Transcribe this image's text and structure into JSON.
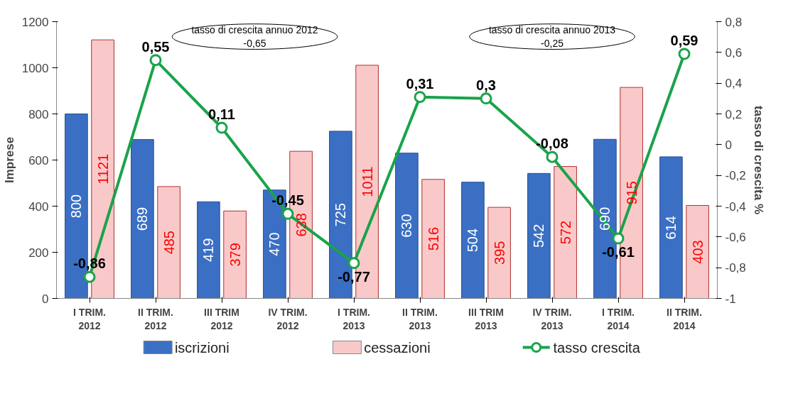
{
  "chart_data": {
    "type": "bar",
    "categories": [
      "I TRIM.\n2012",
      "II TRIM.\n2012",
      "III TRIM\n2012",
      "IV TRIM.\n2012",
      "I TRIM.\n2013",
      "II TRIM.\n2013",
      "III TRIM\n2013",
      "IV TRIM.\n2013",
      "I TRIM.\n2014",
      "II TRIM.\n2014"
    ],
    "series": [
      {
        "name": "iscrizioni",
        "color": "#3a6fc4",
        "values": [
          800,
          689,
          419,
          470,
          725,
          630,
          504,
          542,
          690,
          614
        ],
        "value_labels": [
          "800",
          "689",
          "419",
          "470",
          "725",
          "630",
          "504",
          "542",
          "690",
          "614"
        ]
      },
      {
        "name": "cessazioni",
        "color": "#f9c9c9",
        "values": [
          1121,
          485,
          379,
          638,
          1011,
          516,
          395,
          572,
          915,
          403
        ],
        "value_labels": [
          "1121",
          "485",
          "379",
          "638",
          "1011",
          "516",
          "395",
          "572",
          "915",
          "403"
        ]
      },
      {
        "name": "tasso crescita",
        "type": "line",
        "axis": "y2",
        "color": "#1aa34a",
        "marker": "circle",
        "values": [
          -0.86,
          0.55,
          0.11,
          -0.45,
          -0.77,
          0.31,
          0.3,
          -0.08,
          -0.61,
          0.59
        ],
        "value_labels": [
          "-0,86",
          "0,55",
          "0,11",
          "-0,45",
          "-0,77",
          "0,31",
          "0,3",
          "-0,08",
          "-0,61",
          "0,59"
        ]
      }
    ],
    "ylabel": "Imprese",
    "y2label": "tasso di crescita %",
    "ylim": [
      0,
      1200
    ],
    "yticks": [
      0,
      200,
      400,
      600,
      800,
      1000,
      1200
    ],
    "y2lim": [
      -1,
      0.8
    ],
    "y2ticks": [
      {
        "value": -1,
        "label": "-1"
      },
      {
        "value": -0.8,
        "label": "-0,8"
      },
      {
        "value": -0.6,
        "label": "-0,6"
      },
      {
        "value": -0.4,
        "label": "-0,4"
      },
      {
        "value": -0.2,
        "label": "-0,2"
      },
      {
        "value": 0,
        "label": "0"
      },
      {
        "value": 0.2,
        "label": "0,2"
      },
      {
        "value": 0.4,
        "label": "0,4"
      },
      {
        "value": 0.6,
        "label": "0,6"
      },
      {
        "value": 0.8,
        "label": "0,8"
      }
    ],
    "annotations": [
      "tasso di crescita annuo 2012\n-0,65",
      "tasso di crescita annuo 2013\n-0,25"
    ],
    "legend": "bottom",
    "grid": false
  }
}
